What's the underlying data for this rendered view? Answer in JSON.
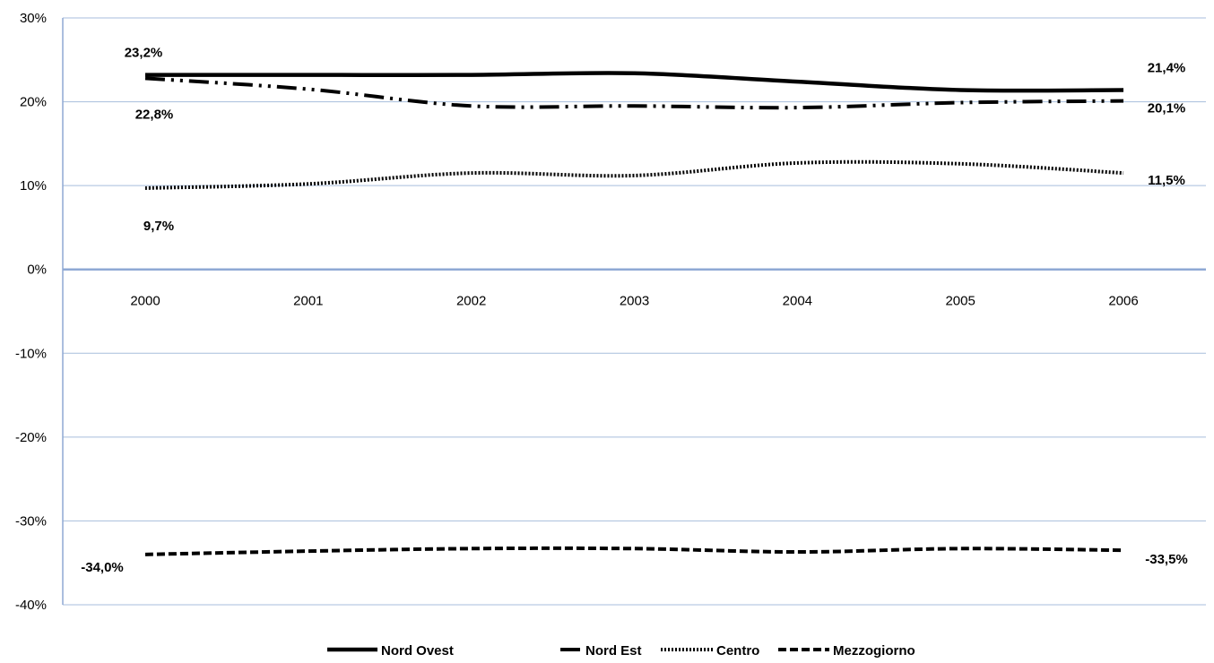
{
  "chart_data": {
    "type": "line",
    "categories": [
      "2000",
      "2001",
      "2002",
      "2003",
      "2004",
      "2005",
      "2006"
    ],
    "y_ticks": [
      "30%",
      "20%",
      "10%",
      "0%",
      "-10%",
      "-20%",
      "-30%",
      "-40%"
    ],
    "ylim": [
      -40,
      30
    ],
    "grid": true,
    "legend_position": "bottom",
    "series": [
      {
        "name": "Nord Ovest",
        "style": "solid",
        "values": [
          23.2,
          23.2,
          23.2,
          23.4,
          22.4,
          21.4,
          21.4
        ],
        "labels": {
          "first": "23,2%",
          "last": "21,4%"
        }
      },
      {
        "name": "Nord Est",
        "style": "dashdotdot",
        "values": [
          22.8,
          21.5,
          19.5,
          19.5,
          19.3,
          19.9,
          20.1
        ],
        "labels": {
          "first": "22,8%",
          "last": "20,1%"
        }
      },
      {
        "name": "Centro",
        "style": "dotted",
        "values": [
          9.7,
          10.2,
          11.5,
          11.2,
          12.7,
          12.6,
          11.5
        ],
        "labels": {
          "first": "9,7%",
          "last": "11,5%"
        }
      },
      {
        "name": "Mezzogiorno",
        "style": "dashed",
        "values": [
          -34.0,
          -33.6,
          -33.3,
          -33.3,
          -33.7,
          -33.3,
          -33.5
        ],
        "labels": {
          "first": "-34,0%",
          "last": "-33,5%"
        }
      }
    ],
    "colors": {
      "line": "#000000",
      "grid": "#a7bedc",
      "axis": "#8fa9d4"
    }
  }
}
